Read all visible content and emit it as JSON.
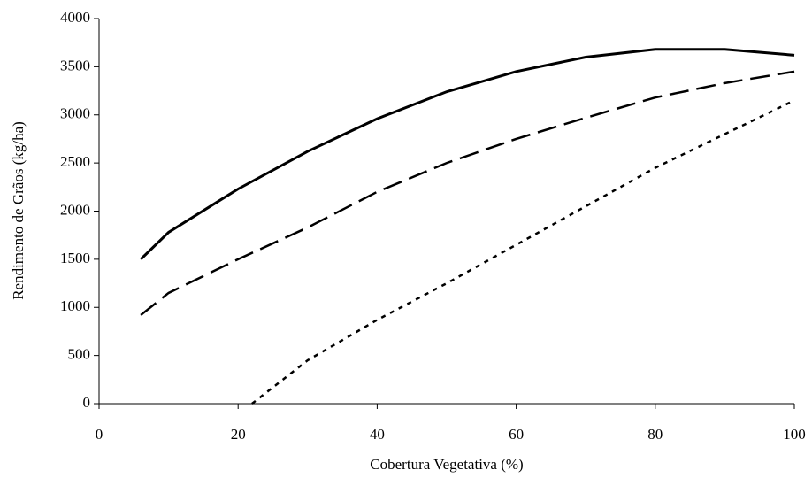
{
  "chart_data": {
    "type": "line",
    "xlabel": "Cobertura Vegetativa (%)",
    "ylabel": "Rendimento de Grãos (kg/ha)",
    "xlim": [
      0,
      100
    ],
    "xticks": [
      0,
      20,
      40,
      60,
      80,
      100
    ],
    "ylim": [
      0,
      4000
    ],
    "yticks": [
      0,
      500,
      1000,
      1500,
      2000,
      2500,
      3000,
      3500,
      4000
    ],
    "series": [
      {
        "color": "#000000",
        "dash": "solid",
        "x": [
          6,
          10,
          20,
          30,
          40,
          50,
          60,
          70,
          80,
          90,
          100
        ],
        "values": [
          1500,
          1780,
          2230,
          2620,
          2960,
          3240,
          3450,
          3600,
          3680,
          3680,
          3620
        ]
      },
      {
        "color": "#000000",
        "dash": "dashed",
        "x": [
          6,
          10,
          20,
          30,
          40,
          50,
          60,
          70,
          80,
          90,
          100
        ],
        "values": [
          920,
          1150,
          1500,
          1830,
          2200,
          2500,
          2750,
          2970,
          3180,
          3330,
          3450
        ]
      },
      {
        "color": "#000000",
        "dash": "dotted",
        "x": [
          22,
          30,
          40,
          50,
          60,
          70,
          80,
          90,
          100
        ],
        "values": [
          0,
          450,
          870,
          1250,
          1650,
          2050,
          2450,
          2800,
          3150
        ]
      }
    ]
  }
}
